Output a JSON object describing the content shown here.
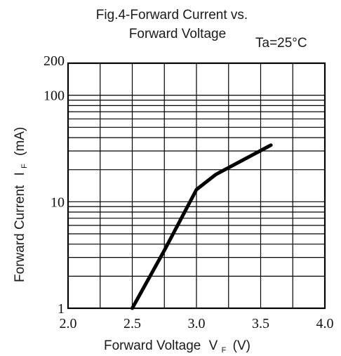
{
  "chart_data": {
    "type": "line",
    "title_line1": "Fig.4-Forward Current vs.",
    "title_line2": "Forward Voltage",
    "condition": "Ta=25°C",
    "xlabel": "Forward Voltage",
    "xlabel_sym": "V",
    "xlabel_sub": "F",
    "xlabel_unit": "(V)",
    "ylabel": "Forward Current",
    "ylabel_sym": "I",
    "ylabel_sub": "F",
    "ylabel_unit": "(mA)",
    "xlim": [
      2.0,
      4.0
    ],
    "ylim": [
      1,
      200
    ],
    "yscale": "log",
    "grid": true,
    "x_ticks": [
      "2.0",
      "2.5",
      "3.0",
      "3.5",
      "4.0"
    ],
    "y_ticks": [
      "1",
      "10",
      "100",
      "200"
    ],
    "series": [
      {
        "x": [
          2.5,
          2.75,
          3.0,
          3.15,
          3.58
        ],
        "y": [
          1.0,
          3.5,
          13.0,
          18.0,
          34.0
        ]
      }
    ]
  }
}
